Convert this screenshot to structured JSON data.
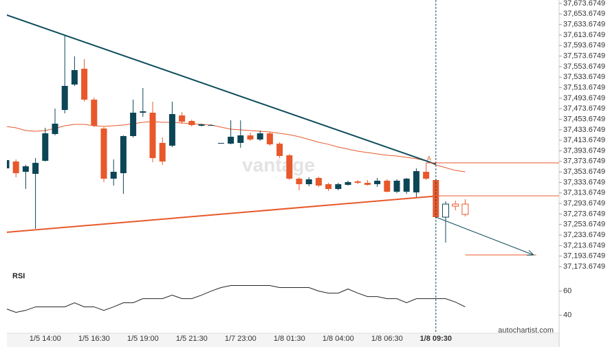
{
  "chart_data": {
    "type": "candlestick",
    "categories": [
      null,
      null,
      null,
      null,
      "1/5 14:00",
      null,
      null,
      null,
      null,
      "1/5 16:30",
      null,
      null,
      null,
      null,
      "1/5 19:00",
      null,
      null,
      null,
      null,
      "1/5 21:30",
      null,
      null,
      null,
      null,
      "1/7 23:00",
      null,
      null,
      null,
      null,
      "1/8 01:30",
      null,
      null,
      null,
      null,
      "1/8 04:00",
      null,
      null,
      null,
      null,
      "1/8 06:30",
      null,
      null,
      null,
      null,
      "1/8 09:30",
      null,
      null,
      null
    ],
    "highlight_category": "1/8 09:30",
    "open": [
      37360.4,
      37373.4,
      37353.8,
      37349.9,
      37374.7,
      37425.6,
      37471.3,
      37519.6,
      37549.6,
      37490.9,
      37436.1,
      37340.8,
      37351.2,
      37421.7,
      37466.1,
      37466.1,
      37408.7,
      37403.4,
      37460.9,
      37450.4,
      37441.3,
      37442.6,
      37407.3,
      37407.3,
      37408.7,
      37423.0,
      37415.2,
      37426.9,
      37407.3,
      37385.2,
      37340.8,
      37330.3,
      37342.1,
      37330.3,
      37321.2,
      37329.0,
      37335.5,
      37332.9,
      37330.3,
      37336.9,
      37316.0,
      37316.0,
      37314.7,
      37353.8,
      37338.2,
      37267.7,
      37292.5,
      37292.5
    ],
    "high": [
      37377.3,
      37377.3,
      37366.9,
      37379.9,
      37437.4,
      37473.9,
      37612.3,
      37573.1,
      37567.9,
      37494.8,
      37438.7,
      37377.3,
      37423.0,
      37490.9,
      37513.1,
      37487.0,
      37419.1,
      37487.0,
      37467.4,
      37453.0,
      37445.2,
      37443.9,
      37408.7,
      37451.7,
      37451.7,
      37428.2,
      37432.2,
      37429.5,
      37410.0,
      37387.8,
      37343.4,
      37343.4,
      37344.7,
      37332.9,
      37332.9,
      37336.9,
      37338.2,
      37338.2,
      37342.1,
      37339.5,
      37339.5,
      37342.1,
      37360.4,
      37370.8,
      37340.8,
      37297.7,
      37299.0,
      37301.6
    ],
    "low": [
      37359.0,
      37343.4,
      37321.2,
      37245.5,
      37373.4,
      37423.0,
      37464.8,
      37517.0,
      37487.0,
      37438.7,
      37334.2,
      37327.7,
      37312.0,
      37419.1,
      37458.3,
      37372.1,
      37366.9,
      37400.8,
      37445.2,
      37440.0,
      37440.0,
      37441.3,
      37407.3,
      37406.0,
      37399.5,
      37412.6,
      37412.6,
      37403.4,
      37379.9,
      37338.2,
      37318.6,
      37326.4,
      37325.1,
      37317.3,
      37318.6,
      37327.7,
      37330.3,
      37327.7,
      37325.1,
      37314.7,
      37313.4,
      37312.0,
      37304.2,
      37338.2,
      37265.1,
      37219.4,
      37280.7,
      37269.0
    ],
    "close": [
      37376.0,
      37351.2,
      37364.3,
      37370.8,
      37426.9,
      37445.2,
      37517.0,
      37547.0,
      37490.9,
      37441.3,
      37340.8,
      37353.8,
      37421.7,
      37466.1,
      37468.7,
      37379.9,
      37373.4,
      37463.5,
      37449.1,
      37442.6,
      37443.9,
      37442.6,
      37408.7,
      37420.4,
      37423.0,
      37415.2,
      37426.9,
      37406.0,
      37383.9,
      37340.8,
      37330.3,
      37339.5,
      37327.7,
      37321.2,
      37330.3,
      37334.2,
      37332.9,
      37329.0,
      37336.9,
      37316.0,
      37336.9,
      37340.8,
      37355.1,
      37340.8,
      37267.7,
      37292.5,
      37288.5,
      37272.9
    ],
    "up_color": "#0c4656",
    "down_color": "#e8582a",
    "moving_average": {
      "color": "#e8582a",
      "values": [
        37440.0,
        37437.4,
        37432.2,
        37430.9,
        37432.2,
        37436.1,
        37441.3,
        37443.9,
        37443.9,
        37441.3,
        37440.0,
        37441.3,
        37442.6,
        37445.2,
        37447.8,
        37449.1,
        37447.8,
        37447.8,
        37446.5,
        37445.2,
        37443.9,
        37442.6,
        37438.7,
        37434.8,
        37433.5,
        37432.2,
        37430.9,
        37429.5,
        37426.9,
        37424.3,
        37420.4,
        37415.2,
        37410.0,
        37406.0,
        37400.8,
        37396.9,
        37393.0,
        37390.4,
        37387.8,
        37385.2,
        37383.9,
        37381.2,
        37378.6,
        37374.7,
        37366.9,
        37361.7,
        37356.4,
        37353.8
      ]
    },
    "resistance": {
      "color": "#0d4c5c",
      "x": [
        0,
        44
      ],
      "values": [
        37652.0,
        37368.2
      ]
    },
    "support": {
      "color": "#e8582a",
      "x": [
        0,
        44
      ],
      "values": [
        37238.9,
        37307.7
      ]
    },
    "point_label": "A",
    "levels": [
      {
        "from": 43,
        "value": 37370.8
      },
      {
        "from": 44,
        "value": 37308.1
      },
      {
        "from": 47,
        "to": 54,
        "value": 37195.9
      }
    ],
    "forecast": {
      "color": "#0d4c5c",
      "x": [
        44,
        54
      ],
      "values": [
        37267.7,
        37195.9
      ]
    },
    "ylim": [
      37168.5,
      37680.2
    ],
    "yticks": [
      {
        "value": 37673.6749,
        "label": "37,673.6749"
      },
      {
        "value": 37653.6749,
        "label": "37,653.6749"
      },
      {
        "value": 37633.6749,
        "label": "37,633.6749"
      },
      {
        "value": 37613.6749,
        "label": "37,613.6749"
      },
      {
        "value": 37593.6749,
        "label": "37,593.6749"
      },
      {
        "value": 37573.6749,
        "label": "37,573.6749"
      },
      {
        "value": 37553.6749,
        "label": "37,553.6749"
      },
      {
        "value": 37533.6749,
        "label": "37,533.6749"
      },
      {
        "value": 37513.6749,
        "label": "37,513.6749"
      },
      {
        "value": 37493.6749,
        "label": "37,493.6749"
      },
      {
        "value": 37473.6749,
        "label": "37,473.6749"
      },
      {
        "value": 37453.6749,
        "label": "37,453.6749"
      },
      {
        "value": 37433.6749,
        "label": "37,433.6749"
      },
      {
        "value": 37413.6749,
        "label": "37,413.6749"
      },
      {
        "value": 37393.6749,
        "label": "37,393.6749"
      },
      {
        "value": 37373.6749,
        "label": "37,373.6749"
      },
      {
        "value": 37353.6749,
        "label": "37,353.6749"
      },
      {
        "value": 37333.6749,
        "label": "37,333.6749"
      },
      {
        "value": 37313.6749,
        "label": "37,313.6749"
      },
      {
        "value": 37293.6749,
        "label": "37,293.6749"
      },
      {
        "value": 37273.6749,
        "label": "37,273.6749"
      },
      {
        "value": 37253.6749,
        "label": "37,253.6749"
      },
      {
        "value": 37233.6749,
        "label": "37,233.6749"
      },
      {
        "value": 37213.6749,
        "label": "37,213.6749"
      },
      {
        "value": 37193.6749,
        "label": "37,193.6749"
      },
      {
        "value": 37173.6749,
        "label": "37,173.6749"
      }
    ],
    "rsi": {
      "title": "RSI",
      "color": "#222222",
      "values": [
        45.1,
        42.3,
        44.0,
        46.9,
        46.9,
        46.9,
        46.9,
        50.3,
        46.9,
        46.9,
        44.0,
        46.9,
        50.3,
        50.3,
        53.7,
        53.7,
        53.7,
        56.6,
        53.7,
        53.7,
        56.6,
        60.0,
        62.9,
        64.6,
        64.6,
        64.6,
        64.6,
        64.6,
        62.9,
        62.9,
        62.9,
        62.9,
        60.0,
        58.3,
        58.3,
        61.7,
        58.3,
        55.4,
        55.4,
        53.7,
        53.7,
        50.3,
        53.7,
        53.7,
        53.7,
        53.7,
        50.9,
        46.9
      ],
      "ylim": [
        25,
        78
      ],
      "yticks": [
        60,
        40
      ]
    },
    "watermark": "vantage",
    "source": "autochartist.com"
  }
}
